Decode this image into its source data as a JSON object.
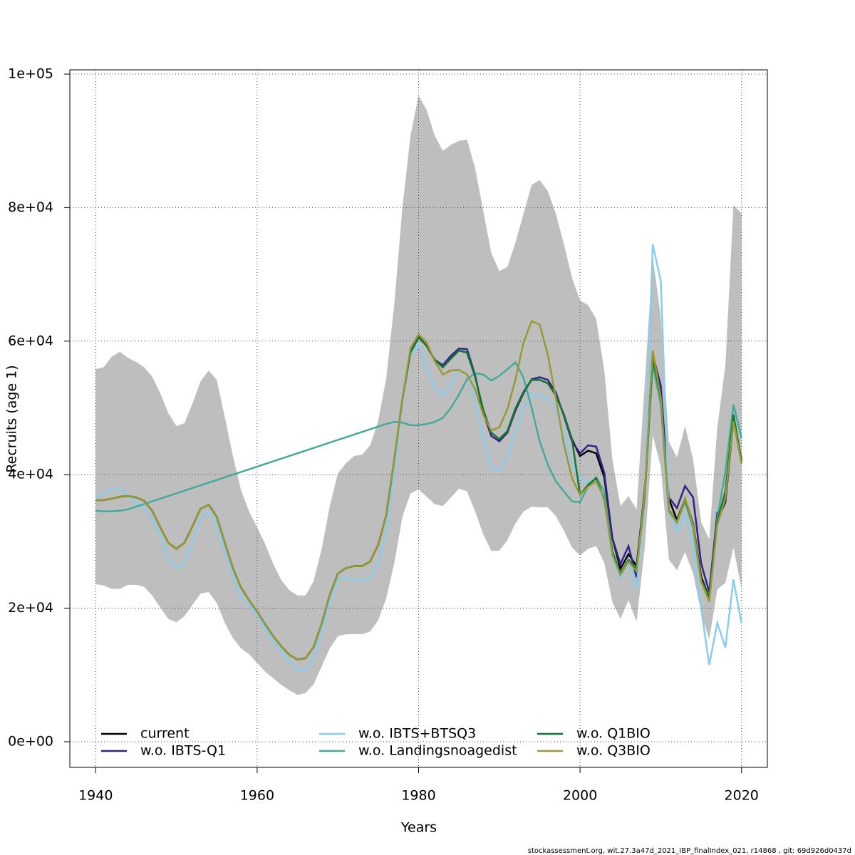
{
  "chart_data": {
    "type": "line",
    "xlabel": "Years",
    "ylabel": "Recruits (age 1)",
    "footer": "stockassessment.org, wit.27.3a47d_2021_IBP_finalIndex_021, r14868 , git: 69d926d0437d",
    "xlim": [
      1936.8,
      2023.2
    ],
    "ylim": [
      -3840,
      100640
    ],
    "xticks": [
      1940,
      1960,
      1980,
      2000,
      2020
    ],
    "yticks": [
      {
        "value": 0,
        "label": "0e+00"
      },
      {
        "value": 20000,
        "label": "2e+04"
      },
      {
        "value": 40000,
        "label": "4e+04"
      },
      {
        "value": 60000,
        "label": "6e+04"
      },
      {
        "value": 80000,
        "label": "8e+04"
      },
      {
        "value": 100000,
        "label": "1e+05"
      }
    ],
    "grid": true,
    "x": [
      1940,
      1941,
      1942,
      1943,
      1944,
      1945,
      1946,
      1947,
      1948,
      1949,
      1950,
      1951,
      1952,
      1953,
      1954,
      1955,
      1956,
      1957,
      1958,
      1959,
      1960,
      1961,
      1962,
      1963,
      1964,
      1965,
      1966,
      1967,
      1968,
      1969,
      1970,
      1971,
      1972,
      1973,
      1974,
      1975,
      1976,
      1977,
      1978,
      1979,
      1980,
      1981,
      1982,
      1983,
      1984,
      1985,
      1986,
      1987,
      1988,
      1989,
      1990,
      1991,
      1992,
      1993,
      1994,
      1995,
      1996,
      1997,
      1998,
      1999,
      2000,
      2001,
      2002,
      2003,
      2004,
      2005,
      2006,
      2007,
      2008,
      2009,
      2010,
      2011,
      2012,
      2013,
      2014,
      2015,
      2016,
      2017,
      2018,
      2019,
      2020
    ],
    "band": {
      "color": "#bebebe",
      "upper": [
        55800,
        56100,
        57700,
        58400,
        57500,
        56900,
        56100,
        54700,
        52200,
        49200,
        47300,
        47700,
        50700,
        54000,
        55600,
        54200,
        48600,
        42800,
        37700,
        34500,
        32100,
        29600,
        26600,
        24200,
        22700,
        21900,
        21900,
        24100,
        28900,
        35300,
        40200,
        41700,
        42800,
        43000,
        44400,
        48100,
        54500,
        65700,
        80100,
        90800,
        96800,
        94600,
        90800,
        88500,
        89400,
        90000,
        90200,
        85900,
        79600,
        73200,
        70500,
        71100,
        74800,
        79100,
        83400,
        84100,
        82500,
        79100,
        74500,
        69500,
        66100,
        65400,
        63300,
        55600,
        42300,
        35300,
        36800,
        34800,
        53500,
        72700,
        63600,
        44900,
        42600,
        47300,
        42300,
        32900,
        30300,
        47100,
        56400,
        80400,
        79100
      ],
      "lower": [
        23600,
        23400,
        22900,
        22900,
        23500,
        23500,
        23200,
        21900,
        20100,
        18400,
        17900,
        18800,
        20500,
        22200,
        22400,
        20800,
        17800,
        15500,
        14000,
        13100,
        11800,
        10500,
        9500,
        8500,
        7700,
        7000,
        7300,
        8600,
        11300,
        14000,
        15800,
        16100,
        16100,
        16100,
        16500,
        18200,
        21500,
        26800,
        33700,
        37200,
        37800,
        36700,
        35600,
        35300,
        36600,
        37900,
        37500,
        34500,
        31100,
        28600,
        28600,
        30200,
        32700,
        34500,
        35200,
        35100,
        35100,
        33800,
        31600,
        29100,
        27900,
        28900,
        29300,
        26800,
        20900,
        18400,
        21200,
        18000,
        28900,
        45900,
        41200,
        27300,
        25700,
        28400,
        25200,
        19300,
        15300,
        22800,
        23800,
        29100,
        22900
      ]
    },
    "series": [
      {
        "name": "current",
        "color": "#000000",
        "values": [
          36200,
          36200,
          36400,
          36700,
          36800,
          36600,
          36100,
          34600,
          32100,
          29800,
          28900,
          29800,
          32300,
          34900,
          35500,
          33700,
          29800,
          26000,
          23100,
          21200,
          19500,
          17600,
          15800,
          14300,
          13000,
          12300,
          12500,
          14200,
          17700,
          22000,
          25200,
          26000,
          26300,
          26300,
          27000,
          29500,
          34000,
          42300,
          51300,
          58300,
          60600,
          59300,
          57200,
          56100,
          57400,
          58600,
          58300,
          54700,
          49700,
          46300,
          45300,
          46500,
          49900,
          52400,
          54200,
          54200,
          53700,
          51900,
          49000,
          45300,
          42800,
          43600,
          43200,
          39600,
          30500,
          25900,
          28100,
          26300,
          37500,
          58300,
          52400,
          36400,
          33200,
          36400,
          32700,
          24700,
          21500,
          33200,
          35900,
          48100,
          42300
        ]
      },
      {
        "name": "w.o. IBTS-Q1",
        "color": "#332288",
        "values": [
          36200,
          36200,
          36400,
          36700,
          36800,
          36600,
          36100,
          34600,
          32100,
          29800,
          28900,
          29800,
          32300,
          34900,
          35500,
          33700,
          29800,
          26000,
          23100,
          21200,
          19500,
          17600,
          15800,
          14300,
          13000,
          12300,
          12500,
          14200,
          17700,
          22000,
          25200,
          26000,
          26300,
          26300,
          27000,
          29500,
          34000,
          42300,
          51300,
          58300,
          60600,
          59300,
          57200,
          56400,
          57800,
          58900,
          58800,
          54900,
          49300,
          45800,
          45000,
          46300,
          49600,
          52200,
          54300,
          54600,
          54200,
          52300,
          48800,
          45000,
          43200,
          44400,
          44200,
          40300,
          30500,
          26600,
          29300,
          24600,
          37800,
          58000,
          53300,
          36600,
          35000,
          38300,
          36600,
          26700,
          22400,
          34300,
          35900,
          48700,
          42000
        ]
      },
      {
        "name": "w.o. IBTS+BTSQ3",
        "color": "#88ccee",
        "values": [
          36500,
          37300,
          37800,
          38000,
          37000,
          35800,
          35000,
          33500,
          30800,
          27400,
          26000,
          26800,
          30000,
          33500,
          34500,
          32500,
          28500,
          24600,
          21800,
          20500,
          19000,
          17000,
          15000,
          13500,
          12000,
          10700,
          10900,
          12500,
          16500,
          21000,
          24300,
          24600,
          24400,
          24100,
          24500,
          26800,
          31500,
          40500,
          51000,
          58000,
          59500,
          55800,
          53000,
          51800,
          53500,
          55800,
          55000,
          51000,
          45500,
          41000,
          40500,
          42500,
          46500,
          50000,
          52000,
          51800,
          51300,
          50000,
          46000,
          41500,
          39500,
          38800,
          39300,
          36000,
          27500,
          24500,
          27000,
          23000,
          36500,
          74500,
          69000,
          35000,
          31500,
          34000,
          29500,
          20000,
          11500,
          17800,
          14100,
          24300,
          17700
        ]
      },
      {
        "name": "w.o. Landingsnoagedist",
        "color": "#44aa99",
        "values": [
          34600,
          34500,
          34500,
          34600,
          34800,
          35200,
          35600,
          36000,
          36400,
          36800,
          37200,
          37600,
          38000,
          38400,
          38800,
          39200,
          39600,
          40000,
          40400,
          40800,
          41200,
          41600,
          42000,
          42400,
          42800,
          43200,
          43600,
          44000,
          44400,
          44800,
          45200,
          45600,
          46000,
          46400,
          46800,
          47200,
          47600,
          47900,
          47800,
          47400,
          47400,
          47600,
          47900,
          48500,
          50000,
          52000,
          54300,
          55200,
          55000,
          54100,
          54800,
          55800,
          56800,
          54500,
          50000,
          45000,
          41500,
          39000,
          37500,
          36000,
          35900,
          38300,
          39600,
          37500,
          28500,
          25000,
          27300,
          25800,
          37000,
          56500,
          50500,
          34500,
          32800,
          36000,
          32000,
          24000,
          21300,
          33500,
          40500,
          50500,
          45500
        ]
      },
      {
        "name": "w.o. Q1BIO",
        "color": "#117733",
        "values": [
          36200,
          36200,
          36400,
          36700,
          36800,
          36600,
          36100,
          34600,
          32100,
          29800,
          28900,
          29800,
          32300,
          34900,
          35500,
          33700,
          29800,
          26000,
          23100,
          21200,
          19500,
          17600,
          15800,
          14300,
          13000,
          12300,
          12500,
          14200,
          17700,
          22000,
          25200,
          26000,
          26300,
          26300,
          27000,
          29500,
          34000,
          42300,
          51300,
          58300,
          60600,
          59300,
          57200,
          56100,
          57400,
          58600,
          58300,
          54700,
          49700,
          46300,
          45300,
          46500,
          49900,
          52400,
          54200,
          54200,
          53700,
          51900,
          49000,
          45300,
          37000,
          38500,
          39500,
          36300,
          28500,
          25200,
          27200,
          25800,
          36500,
          57500,
          51500,
          34800,
          33000,
          36300,
          32500,
          24300,
          21500,
          33000,
          37500,
          49000,
          42000
        ]
      },
      {
        "name": "w.o. Q3BIO",
        "color": "#999933",
        "values": [
          36200,
          36200,
          36400,
          36700,
          36800,
          36600,
          36100,
          34600,
          32100,
          29800,
          28900,
          29800,
          32300,
          34900,
          35500,
          33700,
          29800,
          26000,
          23100,
          21200,
          19500,
          17600,
          15800,
          14300,
          13000,
          12300,
          12500,
          14200,
          17700,
          22000,
          25200,
          26000,
          26300,
          26300,
          27000,
          29500,
          34000,
          42300,
          51300,
          59000,
          61000,
          59800,
          57000,
          55000,
          55600,
          55700,
          55000,
          52800,
          49000,
          46600,
          47100,
          49800,
          54300,
          59800,
          63000,
          62500,
          58000,
          51500,
          44500,
          39500,
          37000,
          38200,
          39000,
          36500,
          28000,
          25000,
          27000,
          25500,
          37000,
          58600,
          51500,
          34800,
          32800,
          36500,
          32500,
          24000,
          21000,
          32500,
          36500,
          48000,
          41700
        ]
      }
    ]
  }
}
